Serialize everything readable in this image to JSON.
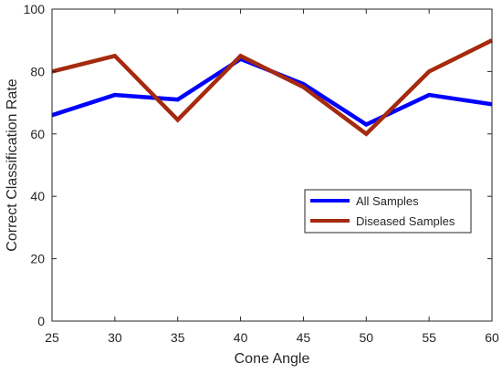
{
  "chart_data": {
    "type": "line",
    "xlabel": "Cone Angle",
    "ylabel": "Correct Classification Rate",
    "x": [
      25,
      30,
      35,
      40,
      45,
      50,
      55,
      60
    ],
    "xlim": [
      25,
      60
    ],
    "ylim": [
      0,
      100
    ],
    "x_ticks": [
      "25",
      "30",
      "35",
      "40",
      "45",
      "50",
      "55",
      "60"
    ],
    "y_ticks": [
      "0",
      "20",
      "40",
      "60",
      "80",
      "100"
    ],
    "grid": false,
    "legend_position": "center-right",
    "series": [
      {
        "name": "All Samples",
        "color": "#0000ff",
        "values": [
          66,
          72.5,
          71,
          84,
          76,
          63,
          72.5,
          69.5
        ]
      },
      {
        "name": "Diseased Samples",
        "color": "#a52a0f",
        "values": [
          80,
          85,
          64.5,
          85,
          75,
          60,
          80,
          90
        ]
      }
    ]
  }
}
